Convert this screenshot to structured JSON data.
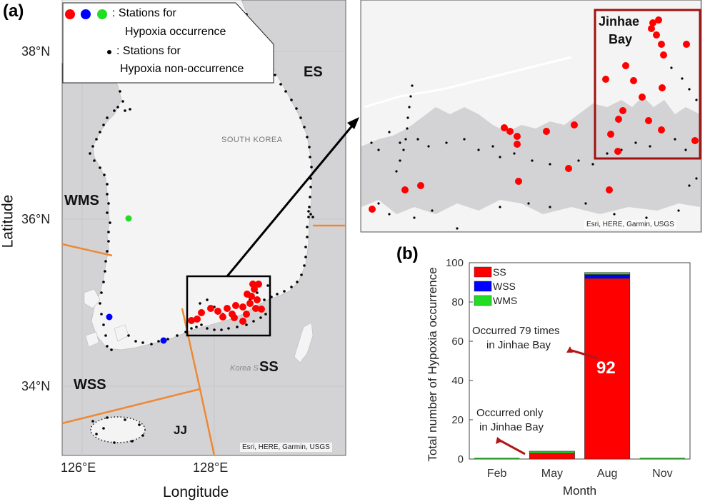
{
  "panel_a": {
    "label": "(a)",
    "x_axis_title": "Longitude",
    "y_axis_title": "Latitude",
    "x_ticks": [
      "126°E",
      "128°E"
    ],
    "y_ticks": [
      "38°N",
      "36°N",
      "34°N"
    ],
    "legend": {
      "line1": ": Stations for",
      "line2": "Hypoxia occurrence",
      "line3": ": Stations for",
      "line4": "Hypoxia non-occurrence"
    },
    "regions": [
      "ES",
      "WMS",
      "WSS",
      "SS",
      "JJ"
    ],
    "basemap_labels": {
      "country": "SOUTH KOREA",
      "sea": "Korea S"
    },
    "attribution": "Esri, HERE, Garmin, USGS",
    "colors": {
      "ss": "#ff0000",
      "wss": "#0000ff",
      "wms": "#22dd22",
      "non": "#000000",
      "land": "#f4f4f4",
      "sea": "#d3d3d6",
      "boundary": "#ee8833"
    }
  },
  "inset": {
    "title_line1": "Jinhae",
    "title_line2": "Bay",
    "attribution": "Esri, HERE, Garmin, USGS"
  },
  "panel_b": {
    "label": "(b)",
    "annotation_jinhae_79_line1": "Occurred 79 times",
    "annotation_jinhae_79_line2": "in Jinhae Bay",
    "annotation_only_line1": "Occurred only",
    "annotation_only_line2": "in Jinhae Bay",
    "aug_value_label": "92"
  },
  "chart_data": {
    "type": "bar",
    "stacked": true,
    "title": "",
    "xlabel": "Month",
    "ylabel": "Total number of Hypoxia occurrence",
    "categories": [
      "Feb",
      "May",
      "Aug",
      "Nov"
    ],
    "ylim": [
      0,
      100
    ],
    "yticks": [
      0,
      20,
      40,
      60,
      80,
      100
    ],
    "series": [
      {
        "name": "SS",
        "color": "#ff0000",
        "values": [
          0,
          3,
          92,
          0
        ]
      },
      {
        "name": "WSS",
        "color": "#0000ff",
        "values": [
          0,
          0,
          2,
          0
        ]
      },
      {
        "name": "WMS",
        "color": "#22dd22",
        "values": [
          0,
          1,
          1,
          0
        ]
      }
    ]
  }
}
